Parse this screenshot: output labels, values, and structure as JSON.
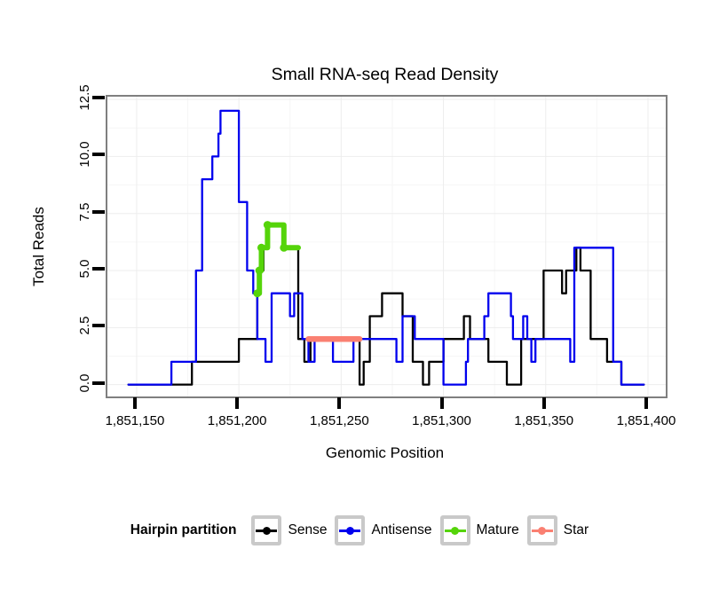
{
  "title": "Small RNA-seq Read Density",
  "axes": {
    "x": {
      "label": "Genomic Position",
      "ticks": [
        {
          "pos": 1851150,
          "label": "1,851,150"
        },
        {
          "pos": 1851200,
          "label": "1,851,200"
        },
        {
          "pos": 1851250,
          "label": "1,851,250"
        },
        {
          "pos": 1851300,
          "label": "1,851,300"
        },
        {
          "pos": 1851350,
          "label": "1,851,350"
        },
        {
          "pos": 1851400,
          "label": "1,851,400"
        }
      ],
      "minor_ticks": [
        1851175,
        1851225,
        1851275,
        1851325,
        1851375
      ]
    },
    "y": {
      "label": "Total Reads",
      "ticks": [
        {
          "val": 0.0,
          "label": "0.0"
        },
        {
          "val": 2.5,
          "label": "2.5"
        },
        {
          "val": 5.0,
          "label": "5.0"
        },
        {
          "val": 7.5,
          "label": "7.5"
        },
        {
          "val": 10.0,
          "label": "10.0"
        },
        {
          "val": 12.5,
          "label": "12.5"
        }
      ],
      "minor_ticks": [
        1.25,
        3.75,
        6.25,
        8.75,
        11.25
      ]
    }
  },
  "legend": {
    "title": "Hairpin partition",
    "entries": [
      {
        "label": "Sense",
        "color": "#000000"
      },
      {
        "label": "Antisense",
        "color": "#0000ee"
      },
      {
        "label": "Mature",
        "color": "#55d40a"
      },
      {
        "label": "Star",
        "color": "#fa8072"
      }
    ]
  },
  "style": {
    "grid_major_color": "#ededed",
    "grid_minor_color": "#f6f6f6",
    "panel_border_color": "#7f7f7f"
  },
  "chart_data": {
    "type": "line",
    "subtype": "step-after",
    "title": "Small RNA-seq Read Density",
    "xlabel": "Genomic Position",
    "ylabel": "Total Reads",
    "xlim": [
      1851135.7,
      1851408.7
    ],
    "ylim": [
      -0.52,
      12.62
    ],
    "grid": "on",
    "legend_position": "bottom",
    "series": [
      {
        "name": "Sense",
        "color": "#000000",
        "width": 2.3,
        "markers": false,
        "points": [
          [
            1851146,
            0
          ],
          [
            1851177,
            1
          ],
          [
            1851200,
            2
          ],
          [
            1851209,
            4
          ],
          [
            1851210,
            5
          ],
          [
            1851212,
            6
          ],
          [
            1851214,
            7
          ],
          [
            1851222,
            6
          ],
          [
            1851229,
            2
          ],
          [
            1851232,
            1
          ],
          [
            1851235,
            2
          ],
          [
            1851259,
            0
          ],
          [
            1851261,
            1
          ],
          [
            1851264,
            3
          ],
          [
            1851270,
            4
          ],
          [
            1851280,
            3
          ],
          [
            1851285,
            1
          ],
          [
            1851290,
            0
          ],
          [
            1851293,
            1
          ],
          [
            1851300,
            2
          ],
          [
            1851310,
            3
          ],
          [
            1851313,
            2
          ],
          [
            1851322,
            1
          ],
          [
            1851331,
            0
          ],
          [
            1851338,
            2
          ],
          [
            1851349,
            5
          ],
          [
            1851358,
            4
          ],
          [
            1851360,
            5
          ],
          [
            1851365,
            6
          ],
          [
            1851367,
            5
          ],
          [
            1851372,
            2
          ],
          [
            1851380,
            1
          ],
          [
            1851387,
            0
          ],
          [
            1851398,
            0
          ]
        ]
      },
      {
        "name": "Antisense",
        "color": "#0000ee",
        "width": 2.3,
        "markers": false,
        "points": [
          [
            1851146,
            0
          ],
          [
            1851167,
            1
          ],
          [
            1851179,
            5
          ],
          [
            1851182,
            9
          ],
          [
            1851187,
            10
          ],
          [
            1851190,
            11
          ],
          [
            1851191,
            12
          ],
          [
            1851200,
            8
          ],
          [
            1851204,
            5
          ],
          [
            1851207,
            4
          ],
          [
            1851209,
            2
          ],
          [
            1851213,
            1
          ],
          [
            1851216,
            4
          ],
          [
            1851225,
            3
          ],
          [
            1851227,
            4
          ],
          [
            1851231,
            2
          ],
          [
            1851234,
            1
          ],
          [
            1851237,
            2
          ],
          [
            1851246,
            1
          ],
          [
            1851256,
            2
          ],
          [
            1851277,
            1
          ],
          [
            1851280,
            3
          ],
          [
            1851286,
            2
          ],
          [
            1851300,
            0
          ],
          [
            1851311,
            1
          ],
          [
            1851312,
            2
          ],
          [
            1851320,
            3
          ],
          [
            1851322,
            4
          ],
          [
            1851333,
            3
          ],
          [
            1851334,
            2
          ],
          [
            1851339,
            3
          ],
          [
            1851341,
            2
          ],
          [
            1851343,
            1
          ],
          [
            1851345,
            2
          ],
          [
            1851362,
            1
          ],
          [
            1851364,
            6
          ],
          [
            1851383,
            1
          ],
          [
            1851387,
            0
          ],
          [
            1851398,
            0
          ]
        ]
      },
      {
        "name": "Mature",
        "color": "#55d40a",
        "width": 6,
        "markers": true,
        "marker_radius": 4.5,
        "points": [
          [
            1851209,
            4
          ],
          [
            1851210,
            5
          ],
          [
            1851211,
            6
          ],
          [
            1851214,
            7
          ],
          [
            1851222,
            6
          ],
          [
            1851229,
            6
          ]
        ]
      },
      {
        "name": "Star",
        "color": "#fa8072",
        "width": 6.5,
        "markers": false,
        "points": [
          [
            1851234,
            2
          ],
          [
            1851259,
            2
          ]
        ]
      }
    ]
  }
}
